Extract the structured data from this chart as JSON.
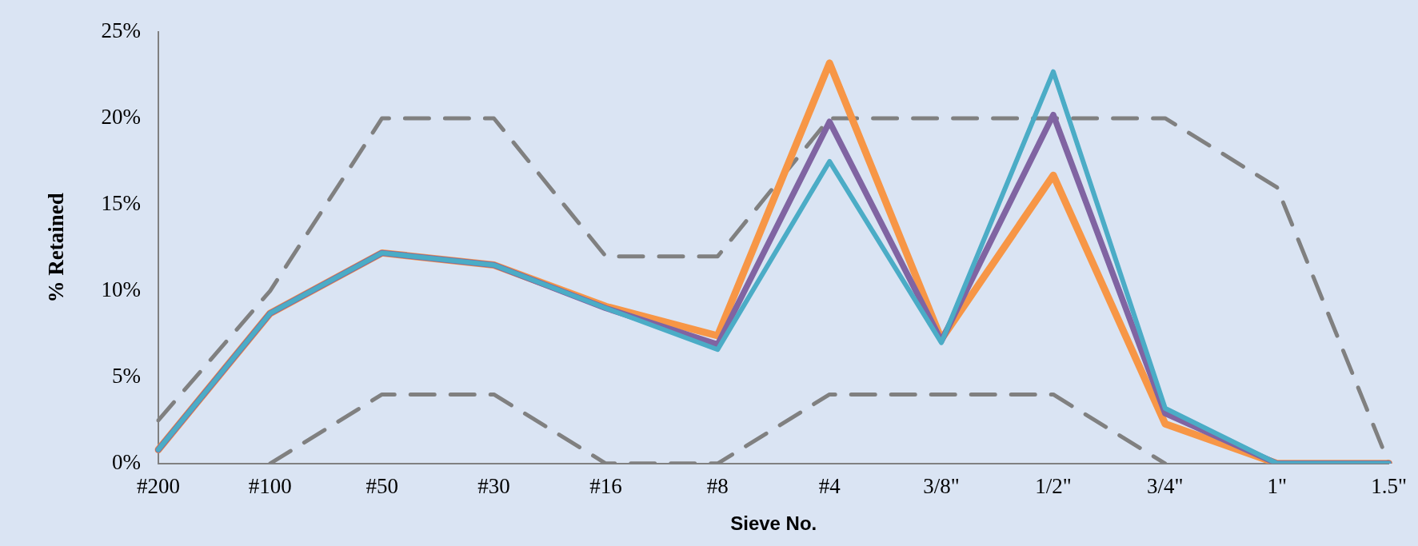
{
  "chart_data": {
    "type": "line",
    "xlabel": "Sieve No.",
    "ylabel": "% Retained",
    "categories": [
      "#200",
      "#100",
      "#50",
      "#30",
      "#16",
      "#8",
      "#4",
      "3/8\"",
      "1/2\"",
      "3/4\"",
      "1\"",
      "1.5\""
    ],
    "series": [
      {
        "color": "#808080",
        "line_style": "dashed",
        "values": [
          2.5,
          10,
          20,
          20,
          12,
          12,
          20,
          20,
          20,
          20,
          16,
          0
        ]
      },
      {
        "color": "#808080",
        "line_style": "dashed",
        "values": [
          null,
          0,
          4,
          4,
          0,
          0,
          4,
          4,
          4,
          0,
          null,
          null
        ]
      },
      {
        "color": "#f79646",
        "line_style": "solid",
        "values": [
          0.8,
          8.7,
          12.2,
          11.5,
          9.1,
          7.4,
          23.2,
          7.2,
          16.7,
          2.3,
          0,
          0
        ]
      },
      {
        "color": "#8064a2",
        "line_style": "solid",
        "values": [
          0.8,
          8.7,
          12.2,
          11.5,
          9.0,
          6.9,
          19.8,
          7.1,
          20.2,
          2.9,
          0,
          0
        ]
      },
      {
        "color": "#4bacc6",
        "line_style": "solid",
        "values": [
          0.8,
          8.7,
          12.2,
          11.5,
          9.0,
          6.6,
          17.5,
          7.0,
          22.7,
          3.2,
          0,
          0
        ]
      }
    ],
    "ylim": [
      0,
      25
    ],
    "yticks": [
      {
        "value": 0,
        "label": "0%"
      },
      {
        "value": 5,
        "label": "5%"
      },
      {
        "value": 10,
        "label": "10%"
      },
      {
        "value": 15,
        "label": "15%"
      },
      {
        "value": 20,
        "label": "20%"
      },
      {
        "value": 25,
        "label": "25%"
      }
    ],
    "grid": false,
    "legend": false,
    "marker": "none"
  }
}
